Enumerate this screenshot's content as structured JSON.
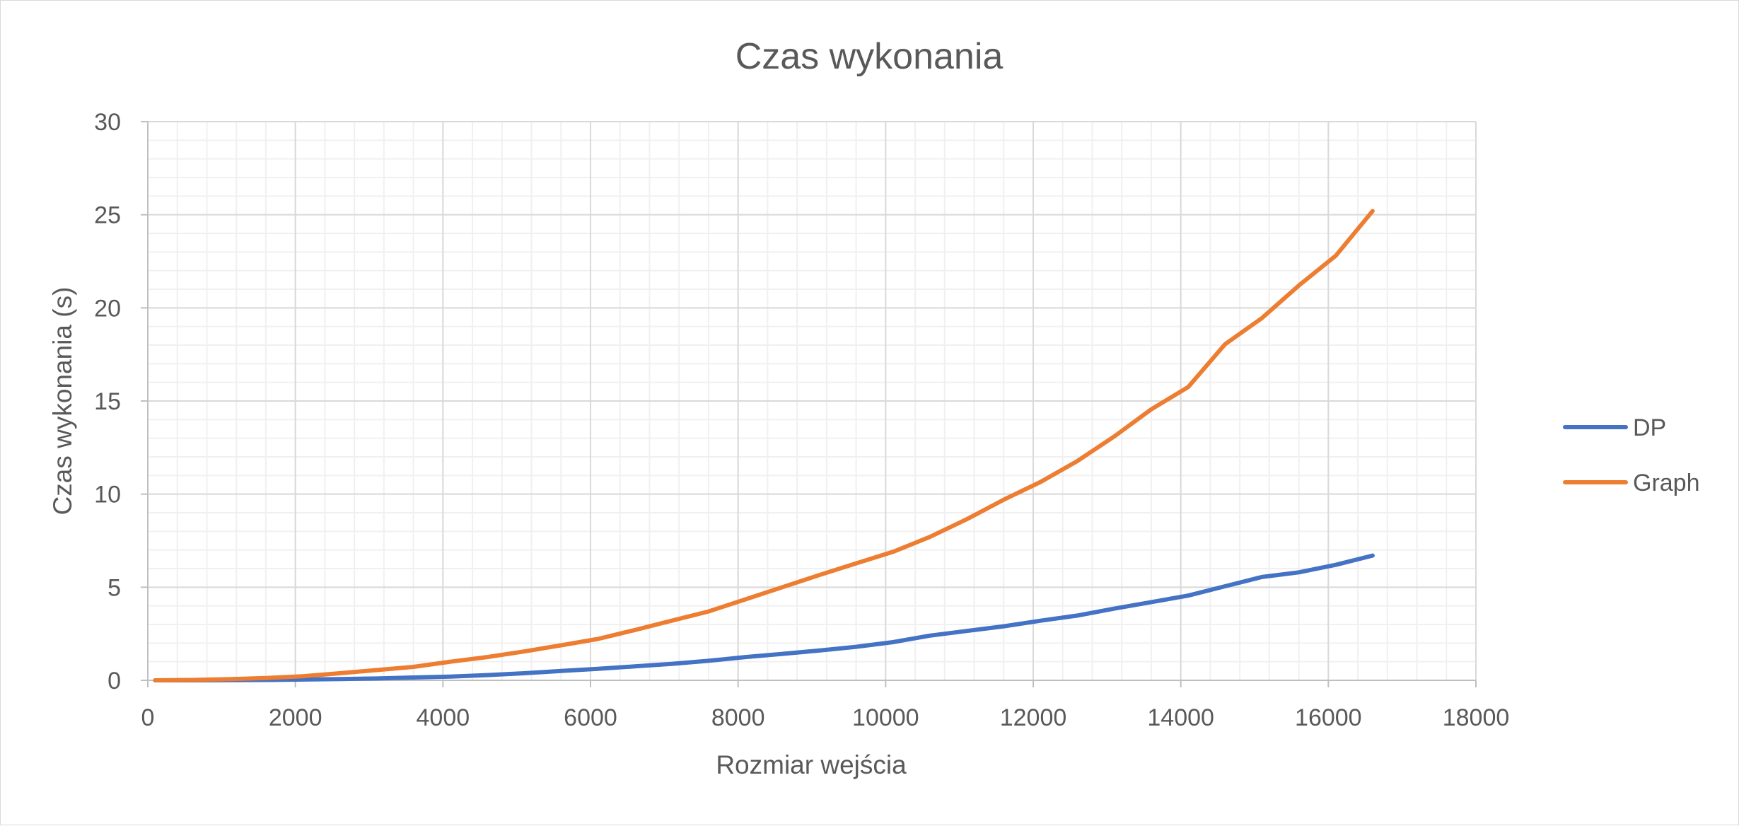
{
  "chart_data": {
    "type": "line",
    "title": "Czas wykonania",
    "xlabel": "Rozmiar wejścia",
    "ylabel": "Czas wykonania (s)",
    "xlim": [
      0,
      18000
    ],
    "ylim": [
      0,
      30
    ],
    "xticks": [
      0,
      2000,
      4000,
      6000,
      8000,
      10000,
      12000,
      14000,
      16000,
      18000
    ],
    "yticks": [
      0,
      5,
      10,
      15,
      20,
      25,
      30
    ],
    "grid": true,
    "legend": "right",
    "x": [
      100,
      600,
      1100,
      1600,
      2100,
      2600,
      3100,
      3600,
      4100,
      4600,
      5100,
      5600,
      6100,
      6600,
      7100,
      7600,
      8100,
      8600,
      9100,
      9600,
      10100,
      10600,
      11100,
      11600,
      12100,
      12600,
      13100,
      13600,
      14100,
      14600,
      15100,
      15600,
      16100,
      16600
    ],
    "series": [
      {
        "name": "DP",
        "color": "#4472C4",
        "values": [
          0.0,
          0.0,
          0.01,
          0.02,
          0.04,
          0.07,
          0.1,
          0.15,
          0.2,
          0.28,
          0.38,
          0.5,
          0.62,
          0.75,
          0.88,
          1.05,
          1.25,
          1.42,
          1.6,
          1.8,
          2.05,
          2.4,
          2.65,
          2.9,
          3.2,
          3.48,
          3.85,
          4.2,
          4.55,
          5.05,
          5.55,
          5.8,
          6.2,
          6.7
        ]
      },
      {
        "name": "Graph",
        "color": "#ED7D31",
        "values": [
          0.0,
          0.02,
          0.06,
          0.12,
          0.22,
          0.38,
          0.55,
          0.72,
          1.0,
          1.25,
          1.55,
          1.88,
          2.22,
          2.7,
          3.2,
          3.7,
          4.35,
          5.0,
          5.65,
          6.28,
          6.9,
          7.7,
          8.65,
          9.7,
          10.65,
          11.78,
          13.1,
          14.55,
          15.75,
          18.05,
          19.45,
          21.2,
          22.8,
          25.2
        ]
      }
    ]
  }
}
